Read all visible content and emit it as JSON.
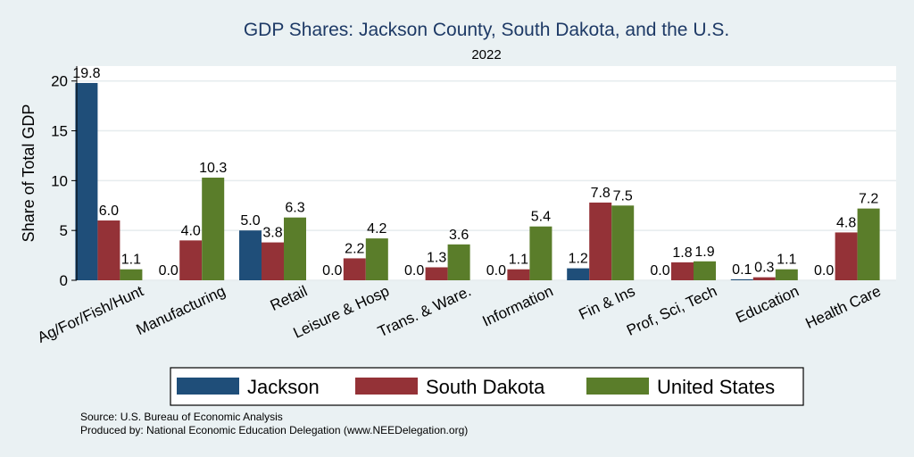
{
  "chart_data": {
    "type": "bar",
    "title": "GDP Shares: Jackson County, South Dakota, and the U.S.",
    "subtitle": "2022",
    "ylabel": "Share of Total GDP",
    "xlabel": "",
    "ylim": [
      0,
      21.5
    ],
    "yticks": [
      "0",
      "5",
      "10",
      "15",
      "20"
    ],
    "grid": true,
    "legend_position": "bottom",
    "categories": [
      "Ag/For/Fish/Hunt",
      "Manufacturing",
      "Retail",
      "Leisure & Hosp",
      "Trans. & Ware.",
      "Information",
      "Fin & Ins",
      "Prof, Sci, Tech",
      "Education",
      "Health Care"
    ],
    "series": [
      {
        "name": "Jackson",
        "color": "#1f4e79",
        "values": [
          19.8,
          0.0,
          5.0,
          0.0,
          0.0,
          0.0,
          1.2,
          0.0,
          0.1,
          0.0
        ]
      },
      {
        "name": "South Dakota",
        "color": "#943237",
        "values": [
          6.0,
          4.0,
          3.8,
          2.2,
          1.3,
          1.1,
          7.8,
          1.8,
          0.3,
          4.8
        ]
      },
      {
        "name": "United States",
        "color": "#5a7d2a",
        "values": [
          1.1,
          10.3,
          6.3,
          4.2,
          3.6,
          5.4,
          7.5,
          1.9,
          1.1,
          7.2
        ]
      }
    ]
  },
  "notes": {
    "source": "Source: U.S. Bureau of Economic Analysis",
    "produced_by": "Produced by: National Economic Education Delegation (www.NEEDelegation.org)"
  }
}
